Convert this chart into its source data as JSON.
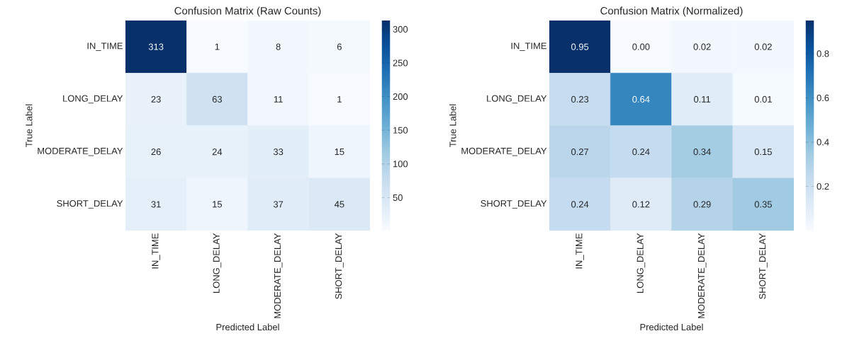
{
  "chart_data": [
    {
      "type": "heatmap",
      "title": "Confusion Matrix (Raw Counts)",
      "xlabel": "Predicted Label",
      "ylabel": "True Label",
      "categories": [
        "IN_TIME",
        "LONG_DELAY",
        "MODERATE_DELAY",
        "SHORT_DELAY"
      ],
      "y_categories": [
        "IN_TIME",
        "LONG_DELAY",
        "MODERATE_DELAY",
        "SHORT_DELAY"
      ],
      "cells": [
        [
          313,
          1,
          8,
          6
        ],
        [
          23,
          63,
          11,
          1
        ],
        [
          26,
          24,
          33,
          15
        ],
        [
          31,
          15,
          37,
          45
        ]
      ],
      "data_labels": true,
      "clim": [
        1,
        313
      ],
      "cticks": [
        50,
        100,
        150,
        200,
        250,
        300
      ]
    },
    {
      "type": "heatmap",
      "title": "Confusion Matrix (Normalized)",
      "xlabel": "Predicted Label",
      "ylabel": "True Label",
      "categories": [
        "IN_TIME",
        "LONG_DELAY",
        "MODERATE_DELAY",
        "SHORT_DELAY"
      ],
      "y_categories": [
        "IN_TIME",
        "LONG_DELAY",
        "MODERATE_DELAY",
        "SHORT_DELAY"
      ],
      "cells": [
        [
          0.95,
          0.0,
          0.02,
          0.02
        ],
        [
          0.23,
          0.64,
          0.11,
          0.01
        ],
        [
          0.27,
          0.24,
          0.34,
          0.15
        ],
        [
          0.24,
          0.12,
          0.29,
          0.35
        ]
      ],
      "cell_labels": [
        [
          "0.95",
          "0.00",
          "0.02",
          "0.02"
        ],
        [
          "0.23",
          "0.64",
          "0.11",
          "0.01"
        ],
        [
          "0.27",
          "0.24",
          "0.34",
          "0.15"
        ],
        [
          "0.24",
          "0.12",
          "0.29",
          "0.35"
        ]
      ],
      "clim": [
        0,
        0.95
      ],
      "cticks": [
        0.2,
        0.4,
        0.6,
        0.8
      ]
    }
  ]
}
